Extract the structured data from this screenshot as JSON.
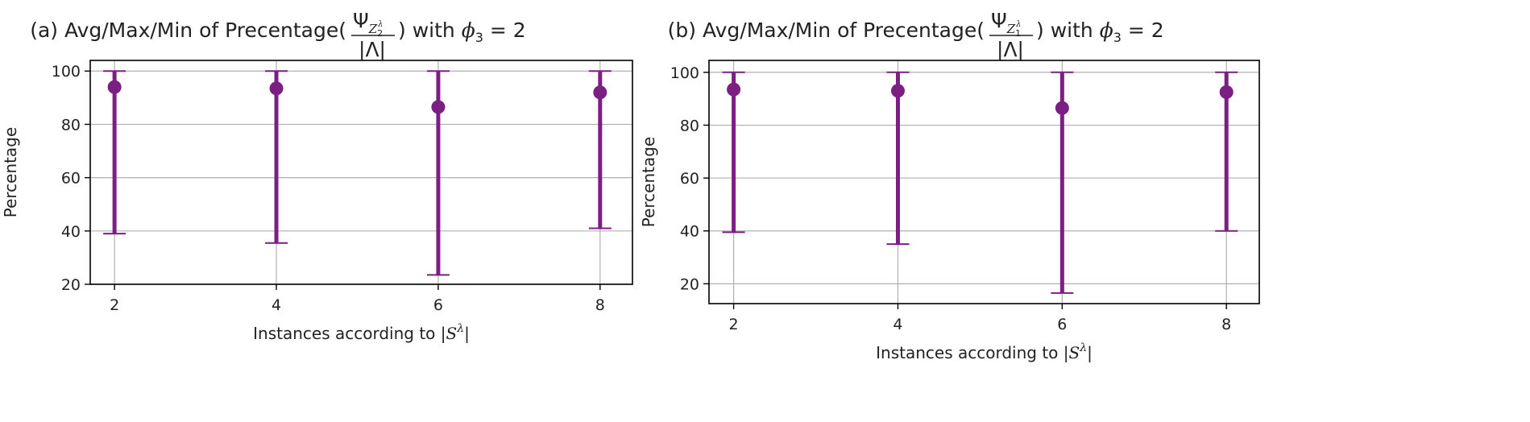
{
  "chart_data": [
    {
      "type": "errorbar",
      "title": {
        "prefix": "(a) Avg/Max/Min of Precentage(",
        "frac_numerator_symbol": "Ψ",
        "frac_numerator_sub": "Z",
        "frac_numerator_subsub": "2",
        "frac_numerator_subsup": "λ",
        "frac_denominator": "|Λ|",
        "suffix": ") with ",
        "param_symbol": "ϕ",
        "param_sub": "3",
        "param_value": "= 2"
      },
      "xlabel": {
        "text": "Instances according to |",
        "symbol": "S",
        "sup": "λ",
        "end": "|"
      },
      "ylabel": "Percentage",
      "x": [
        2,
        4,
        6,
        8
      ],
      "avg": [
        94,
        93.5,
        86.5,
        92
      ],
      "max": [
        100,
        100,
        100,
        100
      ],
      "min": [
        39,
        35.5,
        23.5,
        41
      ],
      "xticks": [
        "2",
        "4",
        "6",
        "8"
      ],
      "yticks": [
        "20",
        "40",
        "60",
        "80",
        "100"
      ],
      "xlim": [
        1.7,
        8.4
      ],
      "ylim": [
        20,
        104
      ],
      "color": "#7b1f82",
      "grid": true
    },
    {
      "type": "errorbar",
      "title": {
        "prefix": "(b) Avg/Max/Min of Precentage(",
        "frac_numerator_symbol": "Ψ",
        "frac_numerator_sub": "Z",
        "frac_numerator_subsub": "1",
        "frac_numerator_subsup": "λ",
        "frac_denominator": "|Λ|",
        "suffix": ") with ",
        "param_symbol": "ϕ",
        "param_sub": "3",
        "param_value": "= 2"
      },
      "xlabel": {
        "text": "Instances according to |",
        "symbol": "S",
        "sup": "λ",
        "end": "|"
      },
      "ylabel": "Percentage",
      "x": [
        2,
        4,
        6,
        8
      ],
      "avg": [
        93.5,
        93,
        86.5,
        92.5
      ],
      "max": [
        100,
        100,
        100,
        100
      ],
      "min": [
        39.5,
        35,
        16.5,
        40
      ],
      "xticks": [
        "2",
        "4",
        "6",
        "8"
      ],
      "yticks": [
        "20",
        "40",
        "60",
        "80",
        "100"
      ],
      "xlim": [
        1.7,
        8.4
      ],
      "ylim": [
        12.5,
        104.5
      ],
      "color": "#7b1f82",
      "grid": true
    }
  ]
}
